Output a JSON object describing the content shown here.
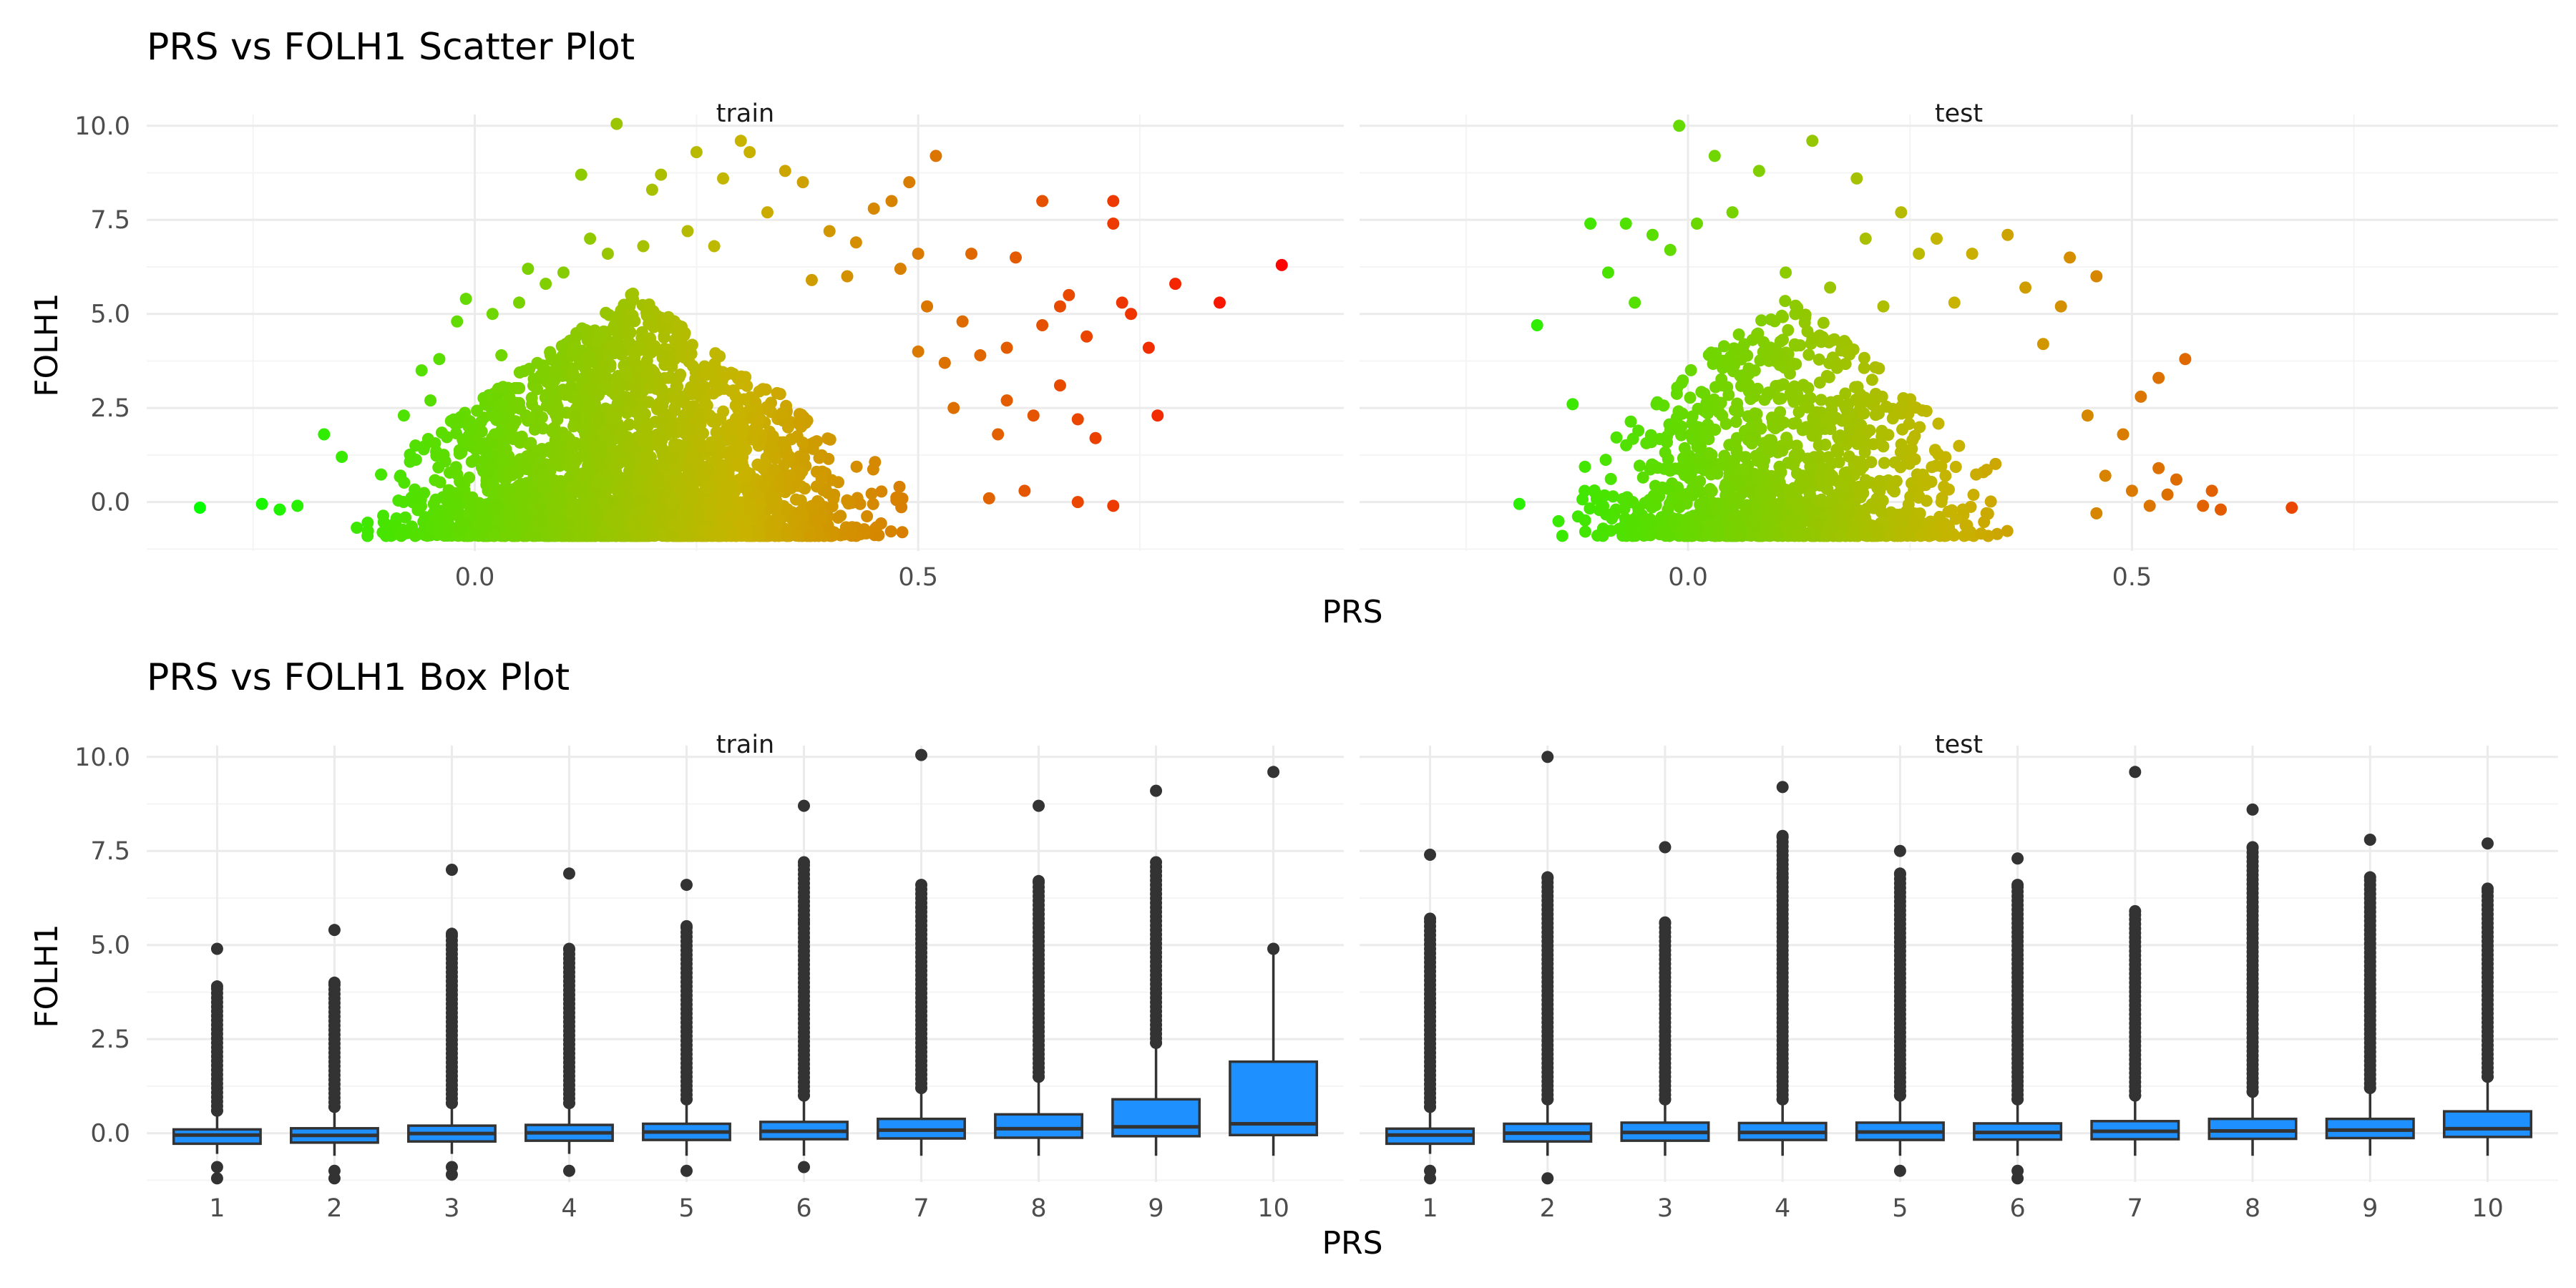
{
  "scatter": {
    "title": "PRS vs FOLH1 Scatter Plot",
    "xlabel": "PRS",
    "ylabel": "FOLH1"
  },
  "box": {
    "title": "PRS vs FOLH1 Box Plot",
    "xlabel": "PRS",
    "ylabel": "FOLH1"
  },
  "chart_data": [
    {
      "type": "scatter",
      "title": "PRS vs FOLH1 Scatter Plot",
      "xlabel": "PRS",
      "ylabel": "FOLH1",
      "facets": [
        "train",
        "test"
      ],
      "x_ticks": [
        "0.0",
        "0.5"
      ],
      "y_ticks": [
        "0.0",
        "2.5",
        "5.0",
        "7.5",
        "10.0"
      ],
      "xlim": [
        -0.37,
        0.98
      ],
      "ylim": [
        -1.3,
        10.3
      ],
      "color_scale": {
        "low": "#00ff00",
        "mid": "#c8b400",
        "high": "#ff0000"
      },
      "grid": true,
      "legend": "none",
      "series": [
        {
          "facet": "train",
          "points": [
            [
              -0.31,
              -0.15
            ],
            [
              -0.24,
              -0.05
            ],
            [
              -0.22,
              -0.2
            ],
            [
              -0.2,
              -0.1
            ],
            [
              -0.17,
              1.8
            ],
            [
              -0.15,
              1.2
            ],
            [
              -0.08,
              2.3
            ],
            [
              -0.06,
              3.5
            ],
            [
              -0.05,
              2.7
            ],
            [
              -0.04,
              3.8
            ],
            [
              -0.02,
              4.8
            ],
            [
              -0.01,
              5.4
            ],
            [
              0.02,
              5.0
            ],
            [
              0.03,
              3.9
            ],
            [
              0.05,
              5.3
            ],
            [
              0.06,
              6.2
            ],
            [
              0.08,
              5.8
            ],
            [
              0.1,
              6.1
            ],
            [
              0.12,
              8.7
            ],
            [
              0.13,
              7.0
            ],
            [
              0.15,
              6.6
            ],
            [
              0.16,
              10.05
            ],
            [
              0.19,
              6.8
            ],
            [
              0.2,
              8.3
            ],
            [
              0.21,
              8.7
            ],
            [
              0.24,
              7.2
            ],
            [
              0.25,
              9.3
            ],
            [
              0.27,
              6.8
            ],
            [
              0.28,
              8.6
            ],
            [
              0.3,
              9.6
            ],
            [
              0.31,
              9.3
            ],
            [
              0.33,
              7.7
            ],
            [
              0.35,
              8.8
            ],
            [
              0.37,
              8.5
            ],
            [
              0.38,
              5.9
            ],
            [
              0.4,
              7.2
            ],
            [
              0.42,
              6.0
            ],
            [
              0.43,
              6.9
            ],
            [
              0.45,
              7.8
            ],
            [
              0.47,
              8.0
            ],
            [
              0.48,
              6.2
            ],
            [
              0.49,
              8.5
            ],
            [
              0.5,
              6.6
            ],
            [
              0.5,
              4.0
            ],
            [
              0.51,
              5.2
            ],
            [
              0.52,
              9.2
            ],
            [
              0.53,
              3.7
            ],
            [
              0.54,
              2.5
            ],
            [
              0.55,
              4.8
            ],
            [
              0.56,
              6.6
            ],
            [
              0.57,
              3.9
            ],
            [
              0.58,
              0.1
            ],
            [
              0.59,
              1.8
            ],
            [
              0.6,
              4.1
            ],
            [
              0.6,
              2.7
            ],
            [
              0.61,
              6.5
            ],
            [
              0.62,
              0.3
            ],
            [
              0.63,
              2.3
            ],
            [
              0.64,
              4.7
            ],
            [
              0.64,
              8.0
            ],
            [
              0.66,
              5.2
            ],
            [
              0.66,
              3.1
            ],
            [
              0.67,
              5.5
            ],
            [
              0.68,
              2.2
            ],
            [
              0.68,
              0.0
            ],
            [
              0.69,
              4.4
            ],
            [
              0.7,
              1.7
            ],
            [
              0.72,
              -0.1
            ],
            [
              0.72,
              8.0
            ],
            [
              0.72,
              7.4
            ],
            [
              0.73,
              5.3
            ],
            [
              0.74,
              5.0
            ],
            [
              0.76,
              4.1
            ],
            [
              0.77,
              2.3
            ],
            [
              0.79,
              5.8
            ],
            [
              0.84,
              5.3
            ],
            [
              0.91,
              6.3
            ]
          ]
        },
        {
          "facet": "test",
          "points": [
            [
              -0.19,
              -0.05
            ],
            [
              -0.17,
              4.7
            ],
            [
              -0.13,
              2.6
            ],
            [
              -0.11,
              7.4
            ],
            [
              -0.09,
              6.1
            ],
            [
              -0.07,
              7.4
            ],
            [
              -0.06,
              5.3
            ],
            [
              -0.04,
              7.1
            ],
            [
              -0.02,
              6.7
            ],
            [
              -0.01,
              10.0
            ],
            [
              0.01,
              7.4
            ],
            [
              0.03,
              9.2
            ],
            [
              0.05,
              7.7
            ],
            [
              0.08,
              8.8
            ],
            [
              0.11,
              6.1
            ],
            [
              0.14,
              9.6
            ],
            [
              0.16,
              5.7
            ],
            [
              0.19,
              8.6
            ],
            [
              0.2,
              7.0
            ],
            [
              0.22,
              5.2
            ],
            [
              0.24,
              7.7
            ],
            [
              0.26,
              6.6
            ],
            [
              0.28,
              7.0
            ],
            [
              0.3,
              5.3
            ],
            [
              0.32,
              6.6
            ],
            [
              0.36,
              7.1
            ],
            [
              0.38,
              5.7
            ],
            [
              0.4,
              4.2
            ],
            [
              0.42,
              5.2
            ],
            [
              0.43,
              6.5
            ],
            [
              0.45,
              2.3
            ],
            [
              0.46,
              6.0
            ],
            [
              0.46,
              -0.3
            ],
            [
              0.47,
              0.7
            ],
            [
              0.49,
              1.8
            ],
            [
              0.5,
              0.3
            ],
            [
              0.51,
              2.8
            ],
            [
              0.52,
              -0.1
            ],
            [
              0.53,
              3.3
            ],
            [
              0.53,
              0.9
            ],
            [
              0.54,
              0.2
            ],
            [
              0.55,
              0.6
            ],
            [
              0.56,
              3.8
            ],
            [
              0.58,
              -0.1
            ],
            [
              0.59,
              0.3
            ],
            [
              0.6,
              -0.2
            ],
            [
              0.68,
              -0.15
            ]
          ]
        }
      ]
    },
    {
      "type": "box",
      "title": "PRS vs FOLH1 Box Plot",
      "xlabel": "PRS",
      "ylabel": "FOLH1",
      "facets": [
        "train",
        "test"
      ],
      "categories": [
        "1",
        "2",
        "3",
        "4",
        "5",
        "6",
        "7",
        "8",
        "9",
        "10"
      ],
      "y_ticks": [
        "0.0",
        "2.5",
        "5.0",
        "7.5",
        "10.0"
      ],
      "ylim": [
        -1.3,
        10.3
      ],
      "fill": "#1e90ff",
      "grid": true,
      "legend": "none",
      "series": [
        {
          "facet": "train",
          "boxes": [
            {
              "min": -0.55,
              "q1": -0.28,
              "median": -0.05,
              "q3": 0.1,
              "max": 0.55,
              "outliers": [
                0.6,
                3.9,
                4.9,
                -1.2,
                -0.9
              ]
            },
            {
              "min": -0.6,
              "q1": -0.25,
              "median": -0.06,
              "q3": 0.13,
              "max": 0.65,
              "outliers": [
                0.7,
                4.0,
                5.4,
                -1.2,
                -1.0
              ]
            },
            {
              "min": -0.55,
              "q1": -0.22,
              "median": -0.01,
              "q3": 0.2,
              "max": 0.7,
              "outliers": [
                0.8,
                5.3,
                7.0,
                -1.1,
                -0.9
              ]
            },
            {
              "min": -0.55,
              "q1": -0.2,
              "median": 0.01,
              "q3": 0.22,
              "max": 0.75,
              "outliers": [
                0.8,
                4.9,
                6.9,
                -1.0
              ]
            },
            {
              "min": -0.6,
              "q1": -0.18,
              "median": 0.03,
              "q3": 0.25,
              "max": 0.85,
              "outliers": [
                0.9,
                5.5,
                6.6,
                -1.0
              ]
            },
            {
              "min": -0.6,
              "q1": -0.16,
              "median": 0.05,
              "q3": 0.3,
              "max": 0.95,
              "outliers": [
                1.0,
                5.6,
                7.2,
                8.7,
                -0.9
              ]
            },
            {
              "min": -0.6,
              "q1": -0.14,
              "median": 0.08,
              "q3": 0.38,
              "max": 1.1,
              "outliers": [
                1.2,
                6.0,
                6.6,
                10.05
              ]
            },
            {
              "min": -0.6,
              "q1": -0.12,
              "median": 0.12,
              "q3": 0.5,
              "max": 1.4,
              "outliers": [
                1.5,
                6.7,
                8.7
              ]
            },
            {
              "min": -0.6,
              "q1": -0.08,
              "median": 0.17,
              "q3": 0.9,
              "max": 2.3,
              "outliers": [
                2.4,
                7.2,
                9.1
              ]
            },
            {
              "min": -0.6,
              "q1": -0.05,
              "median": 0.25,
              "q3": 1.9,
              "max": 4.8,
              "outliers": [
                4.9,
                9.6
              ]
            }
          ]
        },
        {
          "facet": "test",
          "boxes": [
            {
              "min": -0.55,
              "q1": -0.28,
              "median": -0.05,
              "q3": 0.12,
              "max": 0.6,
              "outliers": [
                0.7,
                5.7,
                7.4,
                -1.2,
                -1.0
              ]
            },
            {
              "min": -0.6,
              "q1": -0.22,
              "median": 0.0,
              "q3": 0.25,
              "max": 0.85,
              "outliers": [
                0.9,
                6.8,
                10.0,
                -1.2
              ]
            },
            {
              "min": -0.6,
              "q1": -0.2,
              "median": 0.02,
              "q3": 0.28,
              "max": 0.85,
              "outliers": [
                0.9,
                5.6,
                7.6
              ]
            },
            {
              "min": -0.6,
              "q1": -0.18,
              "median": 0.02,
              "q3": 0.27,
              "max": 0.85,
              "outliers": [
                0.9,
                6.8,
                7.9,
                9.2
              ]
            },
            {
              "min": -0.6,
              "q1": -0.18,
              "median": 0.03,
              "q3": 0.28,
              "max": 0.9,
              "outliers": [
                1.0,
                6.9,
                7.5,
                -1.0
              ]
            },
            {
              "min": -0.6,
              "q1": -0.17,
              "median": 0.02,
              "q3": 0.26,
              "max": 0.85,
              "outliers": [
                0.9,
                6.6,
                7.3,
                -1.2,
                -1.0
              ]
            },
            {
              "min": -0.6,
              "q1": -0.16,
              "median": 0.05,
              "q3": 0.32,
              "max": 0.95,
              "outliers": [
                1.0,
                5.9,
                9.6
              ]
            },
            {
              "min": -0.6,
              "q1": -0.15,
              "median": 0.06,
              "q3": 0.38,
              "max": 1.05,
              "outliers": [
                1.1,
                6.0,
                7.6,
                8.6
              ]
            },
            {
              "min": -0.6,
              "q1": -0.13,
              "median": 0.08,
              "q3": 0.38,
              "max": 1.1,
              "outliers": [
                1.2,
                6.8,
                7.8
              ]
            },
            {
              "min": -0.6,
              "q1": -0.1,
              "median": 0.12,
              "q3": 0.58,
              "max": 1.4,
              "outliers": [
                1.5,
                6.5,
                7.7
              ]
            }
          ]
        }
      ]
    }
  ]
}
